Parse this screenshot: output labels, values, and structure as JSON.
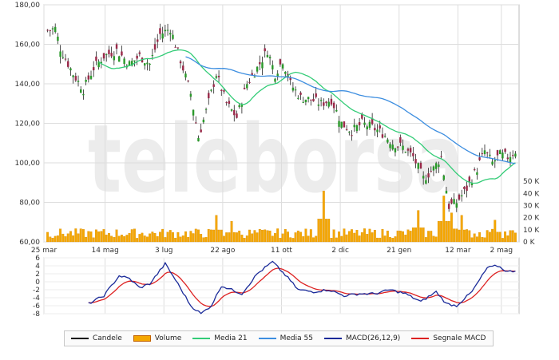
{
  "chart_data": [
    {
      "type": "candlestick",
      "panel": "price",
      "x_ticks": [
        "25 mar",
        "14 mag",
        "3 lug",
        "22 ago",
        "11 ott",
        "2 dic",
        "21 gen",
        "12 mar",
        "2 mag"
      ],
      "y_ticks": [
        "180,00",
        "160,00",
        "140,00",
        "120,00",
        "100,00",
        "80,00",
        "60,00"
      ],
      "ylim": [
        60,
        180
      ],
      "volume_ticks": [
        "50 K",
        "40 K",
        "30 K",
        "20 K",
        "10 K",
        "0 K"
      ],
      "volume_lim": [
        0,
        60
      ],
      "close_keypoints": [
        {
          "t": 0,
          "v": 167
        },
        {
          "t": 3,
          "v": 168
        },
        {
          "t": 5,
          "v": 158
        },
        {
          "t": 10,
          "v": 145
        },
        {
          "t": 14,
          "v": 137
        },
        {
          "t": 18,
          "v": 148
        },
        {
          "t": 22,
          "v": 154
        },
        {
          "t": 27,
          "v": 157
        },
        {
          "t": 32,
          "v": 150
        },
        {
          "t": 36,
          "v": 154
        },
        {
          "t": 40,
          "v": 150
        },
        {
          "t": 44,
          "v": 165
        },
        {
          "t": 48,
          "v": 168
        },
        {
          "t": 52,
          "v": 152
        },
        {
          "t": 56,
          "v": 135
        },
        {
          "t": 59,
          "v": 113
        },
        {
          "t": 62,
          "v": 126
        },
        {
          "t": 66,
          "v": 145
        },
        {
          "t": 70,
          "v": 130
        },
        {
          "t": 74,
          "v": 123
        },
        {
          "t": 78,
          "v": 140
        },
        {
          "t": 82,
          "v": 148
        },
        {
          "t": 86,
          "v": 157
        },
        {
          "t": 89,
          "v": 145
        },
        {
          "t": 92,
          "v": 152
        },
        {
          "t": 95,
          "v": 140
        },
        {
          "t": 99,
          "v": 133
        },
        {
          "t": 103,
          "v": 132
        },
        {
          "t": 107,
          "v": 130
        },
        {
          "t": 111,
          "v": 132
        },
        {
          "t": 115,
          "v": 120
        },
        {
          "t": 119,
          "v": 116
        },
        {
          "t": 123,
          "v": 120
        },
        {
          "t": 127,
          "v": 118
        },
        {
          "t": 131,
          "v": 115
        },
        {
          "t": 135,
          "v": 110
        },
        {
          "t": 139,
          "v": 108
        },
        {
          "t": 143,
          "v": 103
        },
        {
          "t": 147,
          "v": 92
        },
        {
          "t": 151,
          "v": 97
        },
        {
          "t": 154,
          "v": 103
        },
        {
          "t": 157,
          "v": 78
        },
        {
          "t": 160,
          "v": 80
        },
        {
          "t": 164,
          "v": 87
        },
        {
          "t": 168,
          "v": 97
        },
        {
          "t": 171,
          "v": 106
        },
        {
          "t": 174,
          "v": 100
        },
        {
          "t": 177,
          "v": 104
        },
        {
          "t": 180,
          "v": 103
        },
        {
          "t": 183,
          "v": 106
        }
      ],
      "volume_spikes": [
        {
          "t": 66,
          "v": 22
        },
        {
          "t": 72,
          "v": 17
        },
        {
          "t": 108,
          "v": 42
        },
        {
          "t": 145,
          "v": 26
        },
        {
          "t": 155,
          "v": 38
        },
        {
          "t": 158,
          "v": 24
        },
        {
          "t": 162,
          "v": 22
        },
        {
          "t": 175,
          "v": 18
        }
      ]
    },
    {
      "type": "line",
      "panel": "macd",
      "y_ticks": [
        "6",
        "4",
        "2",
        "0",
        "-2",
        "-4",
        "-6",
        "-8"
      ],
      "ylim": [
        -8,
        6
      ],
      "macd_keypoints": [
        {
          "t": 16,
          "v": -5.5
        },
        {
          "t": 22,
          "v": -3.5
        },
        {
          "t": 28,
          "v": 1.5
        },
        {
          "t": 32,
          "v": 0.8
        },
        {
          "t": 36,
          "v": -1.5
        },
        {
          "t": 40,
          "v": -0.5
        },
        {
          "t": 46,
          "v": 4.5
        },
        {
          "t": 50,
          "v": 0.5
        },
        {
          "t": 56,
          "v": -6
        },
        {
          "t": 60,
          "v": -8
        },
        {
          "t": 64,
          "v": -6
        },
        {
          "t": 68,
          "v": -1
        },
        {
          "t": 72,
          "v": -2
        },
        {
          "t": 76,
          "v": -3
        },
        {
          "t": 82,
          "v": 2
        },
        {
          "t": 88,
          "v": 5
        },
        {
          "t": 94,
          "v": 1
        },
        {
          "t": 98,
          "v": -2
        },
        {
          "t": 104,
          "v": -2.5
        },
        {
          "t": 110,
          "v": -2
        },
        {
          "t": 116,
          "v": -3.5
        },
        {
          "t": 122,
          "v": -3
        },
        {
          "t": 128,
          "v": -3
        },
        {
          "t": 134,
          "v": -2
        },
        {
          "t": 140,
          "v": -3
        },
        {
          "t": 146,
          "v": -5
        },
        {
          "t": 152,
          "v": -2.5
        },
        {
          "t": 156,
          "v": -5.5
        },
        {
          "t": 160,
          "v": -6
        },
        {
          "t": 166,
          "v": -2.5
        },
        {
          "t": 172,
          "v": 3.5
        },
        {
          "t": 176,
          "v": 4
        },
        {
          "t": 180,
          "v": 2.5
        },
        {
          "t": 183,
          "v": 2.8
        }
      ]
    }
  ],
  "legend": [
    {
      "label": "Candele",
      "color": "#000000",
      "kind": "line"
    },
    {
      "label": "Volume",
      "color": "#f5a700",
      "kind": "box"
    },
    {
      "label": "Media 21",
      "color": "#33cc77",
      "kind": "line"
    },
    {
      "label": "Media 55",
      "color": "#3d8ee0",
      "kind": "line"
    },
    {
      "label": "MACD(26,12,9)",
      "color": "#1a2a99",
      "kind": "line"
    },
    {
      "label": "Segnale MACD",
      "color": "#dd2222",
      "kind": "line"
    }
  ],
  "watermark": "teleborsa",
  "colors": {
    "up": "#2a9a2a",
    "down": "#9a2a4a",
    "wick": "#222222",
    "volume": "#f5a700",
    "grid": "#dddddd"
  }
}
